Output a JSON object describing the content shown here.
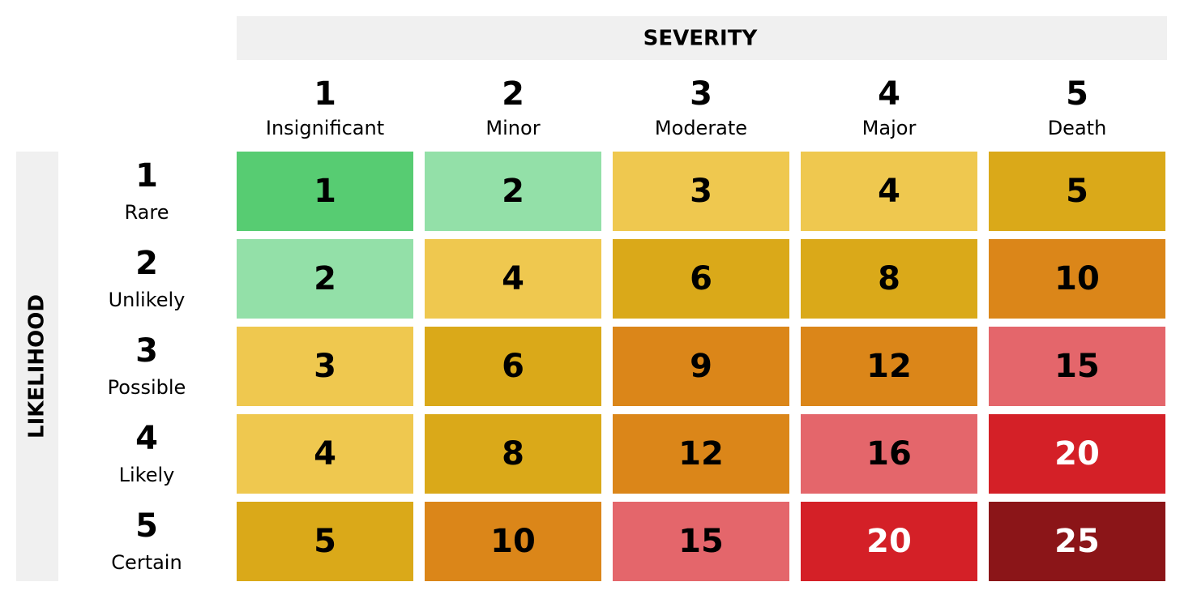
{
  "severity": {
    "title": "SEVERITY",
    "columns": [
      {
        "number": 1,
        "label": "Insignificant"
      },
      {
        "number": 2,
        "label": "Minor"
      },
      {
        "number": 3,
        "label": "Moderate"
      },
      {
        "number": 4,
        "label": "Major"
      },
      {
        "number": 5,
        "label": "Death"
      }
    ]
  },
  "likelihood": {
    "title": "LIKELIHOOD",
    "rows": [
      {
        "number": 1,
        "label": "Rare"
      },
      {
        "number": 2,
        "label": "Unlikely"
      },
      {
        "number": 3,
        "label": "Possible"
      },
      {
        "number": 4,
        "label": "Likely"
      },
      {
        "number": 5,
        "label": "Certain"
      }
    ]
  },
  "matrix": {
    "rows": [
      [
        {
          "value": 1,
          "color": "#57cc72",
          "text_color": "#000000"
        },
        {
          "value": 2,
          "color": "#93e0a8",
          "text_color": "#000000"
        },
        {
          "value": 3,
          "color": "#efc84f",
          "text_color": "#000000"
        },
        {
          "value": 4,
          "color": "#efc84f",
          "text_color": "#000000"
        },
        {
          "value": 5,
          "color": "#daa919",
          "text_color": "#000000"
        }
      ],
      [
        {
          "value": 2,
          "color": "#93e0a8",
          "text_color": "#000000"
        },
        {
          "value": 4,
          "color": "#efc84f",
          "text_color": "#000000"
        },
        {
          "value": 6,
          "color": "#daa919",
          "text_color": "#000000"
        },
        {
          "value": 8,
          "color": "#daa919",
          "text_color": "#000000"
        },
        {
          "value": 10,
          "color": "#db8619",
          "text_color": "#000000"
        }
      ],
      [
        {
          "value": 3,
          "color": "#efc84f",
          "text_color": "#000000"
        },
        {
          "value": 6,
          "color": "#daa919",
          "text_color": "#000000"
        },
        {
          "value": 9,
          "color": "#db8619",
          "text_color": "#000000"
        },
        {
          "value": 12,
          "color": "#db8619",
          "text_color": "#000000"
        },
        {
          "value": 15,
          "color": "#e4666b",
          "text_color": "#000000"
        }
      ],
      [
        {
          "value": 4,
          "color": "#efc84f",
          "text_color": "#000000"
        },
        {
          "value": 8,
          "color": "#daa919",
          "text_color": "#000000"
        },
        {
          "value": 12,
          "color": "#db8619",
          "text_color": "#000000"
        },
        {
          "value": 16,
          "color": "#e4666b",
          "text_color": "#000000"
        },
        {
          "value": 20,
          "color": "#d42027",
          "text_color": "#ffffff"
        }
      ],
      [
        {
          "value": 5,
          "color": "#daa919",
          "text_color": "#000000"
        },
        {
          "value": 10,
          "color": "#db8619",
          "text_color": "#000000"
        },
        {
          "value": 15,
          "color": "#e4666b",
          "text_color": "#000000"
        },
        {
          "value": 20,
          "color": "#d42027",
          "text_color": "#ffffff"
        },
        {
          "value": 25,
          "color": "#8b1518",
          "text_color": "#ffffff"
        }
      ]
    ]
  }
}
